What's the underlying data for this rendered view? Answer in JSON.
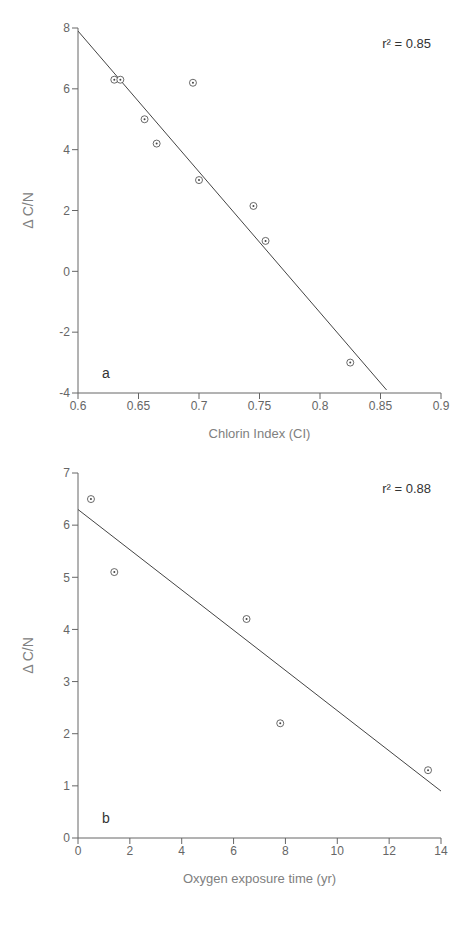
{
  "chart_data": [
    {
      "type": "scatter",
      "xlabel": "Chlorin Index (CI)",
      "ylabel": "Δ C/N",
      "xlim": [
        0.6,
        0.9
      ],
      "xticks": [
        0.6,
        0.65,
        0.7,
        0.75,
        0.8,
        0.85,
        0.9
      ],
      "ylim": [
        -4,
        8
      ],
      "yticks": [
        -4,
        -2,
        0,
        2,
        4,
        6,
        8
      ],
      "grid": false,
      "annotations": [
        "r² = 0.85",
        "a"
      ],
      "series": [
        {
          "type": "line",
          "x": [
            0.6,
            0.855
          ],
          "values": [
            7.9,
            -3.9
          ],
          "color": "#444444",
          "line_style": "solid"
        },
        {
          "type": "scatter",
          "x": [
            0.63,
            0.635,
            0.655,
            0.665,
            0.695,
            0.7,
            0.745,
            0.755,
            0.825
          ],
          "values": [
            6.3,
            6.3,
            5.0,
            4.2,
            6.2,
            3.0,
            2.15,
            1.0,
            -3.0
          ],
          "color": "#444444",
          "marker": "open_circle"
        }
      ]
    },
    {
      "type": "scatter",
      "xlabel": "Oxygen exposure time (yr)",
      "ylabel": "Δ C/N",
      "xlim": [
        0,
        14
      ],
      "xticks": [
        0,
        2,
        4,
        6,
        8,
        10,
        12,
        14
      ],
      "ylim": [
        0,
        7
      ],
      "yticks": [
        0,
        1,
        2,
        3,
        4,
        5,
        6,
        7
      ],
      "grid": false,
      "annotations": [
        "r² = 0.88",
        "b"
      ],
      "series": [
        {
          "type": "line",
          "x": [
            0,
            14
          ],
          "values": [
            6.3,
            0.9
          ],
          "color": "#444444",
          "line_style": "solid"
        },
        {
          "type": "scatter",
          "x": [
            0.5,
            1.4,
            6.5,
            7.8,
            13.5
          ],
          "values": [
            6.5,
            5.1,
            4.2,
            2.2,
            1.3
          ],
          "color": "#444444",
          "marker": "open_circle"
        }
      ]
    }
  ]
}
